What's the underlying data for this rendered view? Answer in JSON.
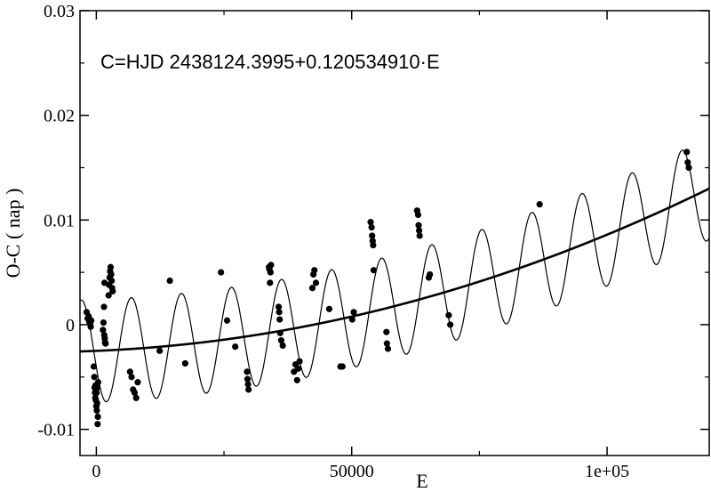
{
  "chart_data": {
    "type": "scatter",
    "title": "",
    "xlabel": "E",
    "ylabel": "O-C ( nap )",
    "annotation": "C=HJD 2438124.3995+0.120534910·E",
    "xlim": [
      -3200,
      120000
    ],
    "ylim": [
      -0.0125,
      0.03
    ],
    "x_ticks": [
      0,
      50000,
      100000
    ],
    "x_tick_labels": [
      "0",
      "50000",
      "1e+05"
    ],
    "y_ticks": [
      -0.01,
      0,
      0.01,
      0.02,
      0.03
    ],
    "y_tick_labels": [
      "-0.01",
      "0",
      "0.01",
      "0.02",
      "0.03"
    ],
    "grid": false,
    "legend": "none",
    "parabola": {
      "a": -0.0025,
      "b": 2e-08,
      "c": 9.1e-13
    },
    "lite_term": {
      "amplitude": 0.0049,
      "period": 9800,
      "phase_e0": -5400
    },
    "series": [
      {
        "type": "scatter",
        "points": [
          [
            -1900,
            0.0012
          ],
          [
            -1700,
            0.0006
          ],
          [
            -1500,
            0.0008
          ],
          [
            -1400,
            0.0003
          ],
          [
            -1200,
            0.0001
          ],
          [
            -1100,
            -0.0002
          ],
          [
            -1000,
            0.0004
          ],
          [
            -500,
            -0.004
          ],
          [
            -400,
            -0.005
          ],
          [
            -350,
            -0.006
          ],
          [
            -250,
            -0.0065
          ],
          [
            -200,
            -0.007
          ],
          [
            -150,
            -0.0058
          ],
          [
            -100,
            -0.0072
          ],
          [
            0,
            -0.0078
          ],
          [
            50,
            -0.0065
          ],
          [
            100,
            -0.0082
          ],
          [
            150,
            -0.0075
          ],
          [
            200,
            -0.006
          ],
          [
            250,
            -0.0095
          ],
          [
            300,
            -0.0088
          ],
          [
            350,
            -0.0055
          ],
          [
            1300,
            -0.0005
          ],
          [
            1400,
            0.0002
          ],
          [
            1500,
            0.0017
          ],
          [
            1550,
            -0.001
          ],
          [
            1600,
            0.004
          ],
          [
            1650,
            -0.0013
          ],
          [
            1700,
            -0.0017
          ],
          [
            1800,
            -0.0018
          ],
          [
            2400,
            0.0028
          ],
          [
            2500,
            0.0038
          ],
          [
            2600,
            0.0045
          ],
          [
            2700,
            0.0051
          ],
          [
            2800,
            0.0055
          ],
          [
            2900,
            0.0048
          ],
          [
            3000,
            0.0042
          ],
          [
            3100,
            0.0035
          ],
          [
            3200,
            0.0032
          ],
          [
            6600,
            -0.0045
          ],
          [
            6900,
            -0.005
          ],
          [
            7200,
            -0.0062
          ],
          [
            7500,
            -0.0065
          ],
          [
            7800,
            -0.007
          ],
          [
            8100,
            -0.0055
          ],
          [
            12400,
            -0.0025
          ],
          [
            14400,
            0.0042
          ],
          [
            17400,
            -0.0037
          ],
          [
            24400,
            0.005
          ],
          [
            25600,
            0.0004
          ],
          [
            27200,
            -0.0021
          ],
          [
            29500,
            -0.0045
          ],
          [
            29600,
            -0.0052
          ],
          [
            29700,
            -0.0057
          ],
          [
            29800,
            -0.0062
          ],
          [
            33800,
            0.0055
          ],
          [
            33900,
            0.0053
          ],
          [
            34000,
            0.004
          ],
          [
            34100,
            0.005
          ],
          [
            34200,
            0.0057
          ],
          [
            35700,
            0.0017
          ],
          [
            35800,
            0.0012
          ],
          [
            35900,
            0.0005
          ],
          [
            36000,
            -0.0008
          ],
          [
            36200,
            -0.0015
          ],
          [
            36500,
            -0.002
          ],
          [
            38700,
            -0.0045
          ],
          [
            39000,
            -0.0038
          ],
          [
            39300,
            -0.0053
          ],
          [
            39500,
            -0.0042
          ],
          [
            39800,
            -0.0035
          ],
          [
            42300,
            0.0035
          ],
          [
            42500,
            0.0048
          ],
          [
            42700,
            0.0052
          ],
          [
            43000,
            0.004
          ],
          [
            45600,
            0.0015
          ],
          [
            47800,
            -0.004
          ],
          [
            48200,
            -0.004
          ],
          [
            50100,
            0.0005
          ],
          [
            50400,
            0.0012
          ],
          [
            53700,
            0.0098
          ],
          [
            53900,
            0.0093
          ],
          [
            54000,
            0.0085
          ],
          [
            54100,
            0.008
          ],
          [
            54200,
            0.0076
          ],
          [
            54300,
            0.0052
          ],
          [
            56800,
            -0.0007
          ],
          [
            56900,
            -0.0018
          ],
          [
            57100,
            -0.0023
          ],
          [
            62800,
            0.0109
          ],
          [
            63000,
            0.0105
          ],
          [
            63100,
            0.0095
          ],
          [
            63200,
            0.009
          ],
          [
            63300,
            0.0085
          ],
          [
            65100,
            0.0045
          ],
          [
            65300,
            0.0048
          ],
          [
            69000,
            0.0009
          ],
          [
            69300,
            0.0
          ],
          [
            86800,
            0.0115
          ],
          [
            115600,
            0.0165
          ],
          [
            115800,
            0.0155
          ],
          [
            116000,
            0.015
          ]
        ]
      }
    ]
  }
}
